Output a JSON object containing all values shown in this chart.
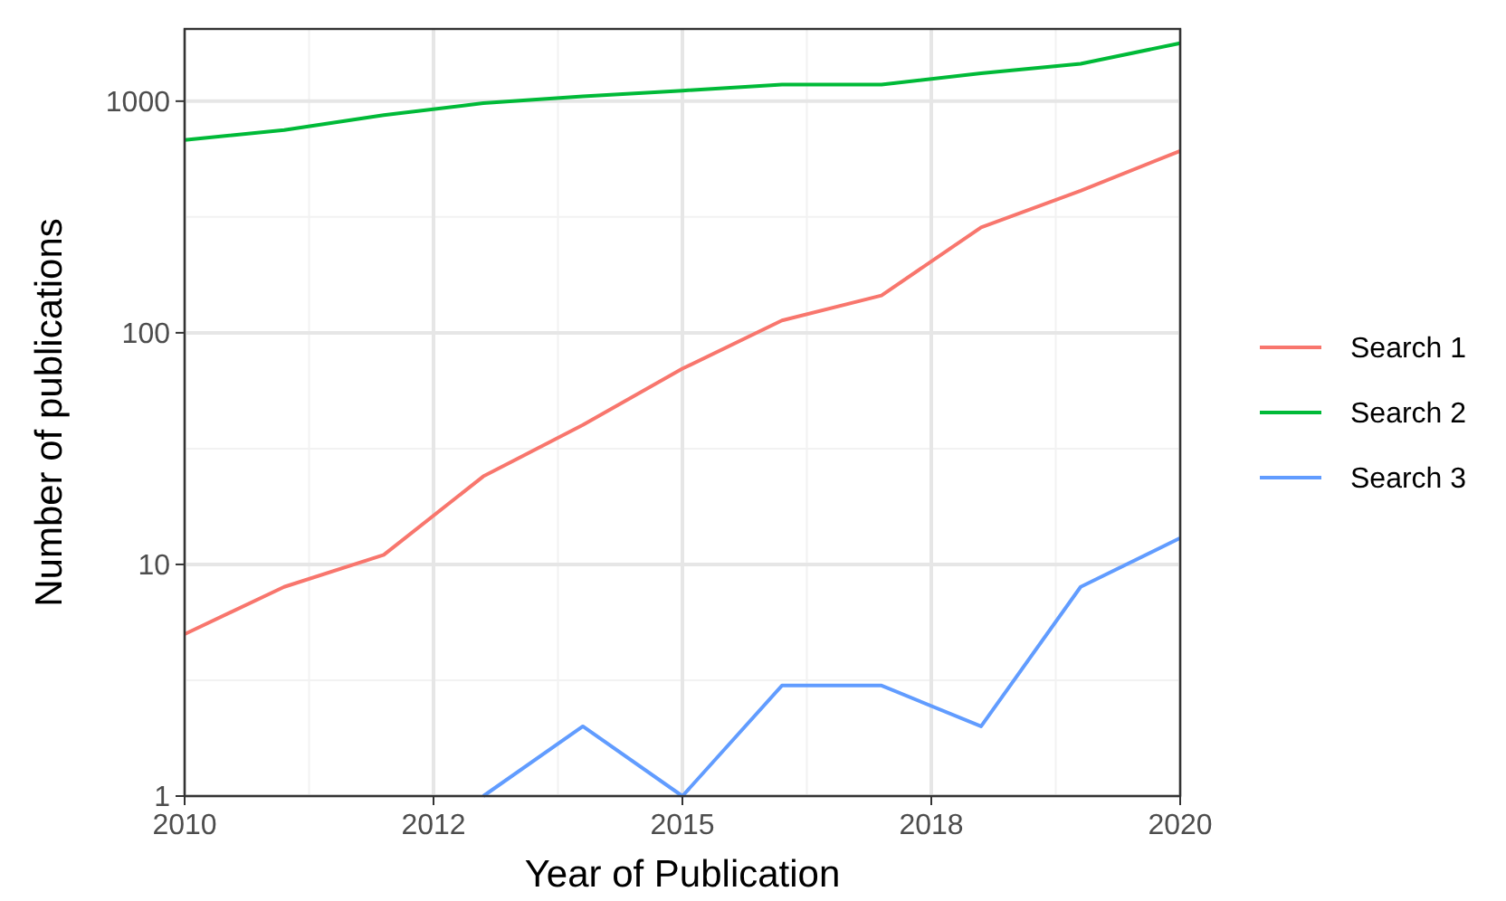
{
  "chart_data": {
    "type": "line",
    "xlabel": "Year of Publication",
    "ylabel": "Number of publications",
    "x": [
      2010,
      2011,
      2012,
      2013,
      2014,
      2015,
      2016,
      2017,
      2018,
      2019,
      2020
    ],
    "series": [
      {
        "name": "Search 1",
        "color": "#f8766d",
        "values": [
          5,
          8,
          11,
          24,
          40,
          70,
          113,
          145,
          285,
          410,
          610
        ]
      },
      {
        "name": "Search 2",
        "color": "#00ba38",
        "values": [
          680,
          750,
          870,
          980,
          1050,
          1110,
          1180,
          1180,
          1320,
          1450,
          1780
        ]
      },
      {
        "name": "Search 3",
        "color": "#619cff",
        "values": [
          null,
          null,
          null,
          1,
          2,
          1,
          3,
          3,
          2,
          8,
          13
        ]
      }
    ],
    "xlim": [
      2010,
      2020
    ],
    "xticks": [
      2010,
      {
        "value": 2012.5,
        "label": "2012"
      },
      2015,
      {
        "value": 2017.5,
        "label": "2018"
      },
      2020
    ],
    "ylim": [
      1,
      2050
    ],
    "yticks": [
      1,
      10,
      100,
      1000
    ],
    "log": "y",
    "grid": true,
    "legend": "right",
    "marker": "none",
    "line_style": "solid"
  }
}
